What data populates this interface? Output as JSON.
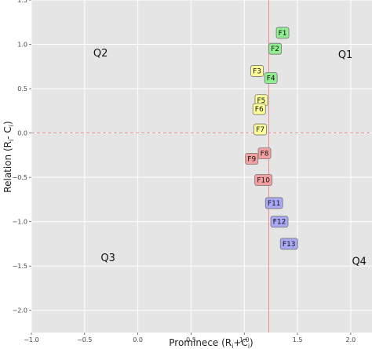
{
  "chart_data": {
    "type": "scatter",
    "title": "",
    "xlabel": "Prominece (R",
    "xlabel_sub": "i",
    "xlabel_mid": "+C",
    "xlabel_sub2": "i",
    "xlabel_end": ")",
    "ylabel": "Relation (R",
    "ylabel_sub": "i",
    "ylabel_mid": "- C",
    "ylabel_sub2": "i",
    "ylabel_end": ")",
    "xlim": [
      -1.0,
      2.2
    ],
    "ylim": [
      -2.25,
      1.5
    ],
    "x_ticks": [
      {
        "v": -1.0,
        "label": "−1.0"
      },
      {
        "v": -0.5,
        "label": "−0.5"
      },
      {
        "v": 0.0,
        "label": "0.0"
      },
      {
        "v": 0.5,
        "label": "0.5"
      },
      {
        "v": 1.0,
        "label": "1.0"
      },
      {
        "v": 1.5,
        "label": "1.5"
      },
      {
        "v": 2.0,
        "label": "2.0"
      }
    ],
    "y_ticks": [
      {
        "v": 1.5,
        "label": "1.5"
      },
      {
        "v": 1.0,
        "label": "1.0"
      },
      {
        "v": 0.5,
        "label": "0.5"
      },
      {
        "v": 0.0,
        "label": "0.0"
      },
      {
        "v": -0.5,
        "label": "−0.5"
      },
      {
        "v": -1.0,
        "label": "−1.0"
      },
      {
        "v": -1.5,
        "label": "−1.5"
      },
      {
        "v": -2.0,
        "label": "−2.0"
      }
    ],
    "grid": true,
    "reference_lines": {
      "x": 1.23,
      "y": 0.0,
      "color": "#f08080"
    },
    "quadrants": [
      {
        "label": "Q1",
        "x": 1.95,
        "y": 0.88
      },
      {
        "label": "Q2",
        "x": -0.35,
        "y": 0.9
      },
      {
        "label": "Q3",
        "x": -0.28,
        "y": -1.41
      },
      {
        "label": "Q4",
        "x": 2.08,
        "y": -1.45
      }
    ],
    "points": [
      {
        "label": "F1",
        "x": 1.36,
        "y": 1.13,
        "color": "#90ee90"
      },
      {
        "label": "F2",
        "x": 1.29,
        "y": 0.95,
        "color": "#90ee90"
      },
      {
        "label": "F3",
        "x": 1.12,
        "y": 0.7,
        "color": "#ffff99"
      },
      {
        "label": "F4",
        "x": 1.25,
        "y": 0.62,
        "color": "#90ee90"
      },
      {
        "label": "F5",
        "x": 1.16,
        "y": 0.37,
        "color": "#ffff99"
      },
      {
        "label": "F6",
        "x": 1.14,
        "y": 0.27,
        "color": "#ffff99"
      },
      {
        "label": "F7",
        "x": 1.15,
        "y": 0.04,
        "color": "#ffff99"
      },
      {
        "label": "F8",
        "x": 1.19,
        "y": -0.23,
        "color": "#f4a0a0"
      },
      {
        "label": "F9",
        "x": 1.07,
        "y": -0.29,
        "color": "#f4a0a0"
      },
      {
        "label": "F10",
        "x": 1.18,
        "y": -0.53,
        "color": "#f4a0a0"
      },
      {
        "label": "F11",
        "x": 1.28,
        "y": -0.79,
        "color": "#a8a8f4"
      },
      {
        "label": "F12",
        "x": 1.33,
        "y": -1.0,
        "color": "#a8a8f4"
      },
      {
        "label": "F13",
        "x": 1.42,
        "y": -1.25,
        "color": "#a8a8f4"
      }
    ],
    "colors": {
      "plot_bg": "#e5e5e5",
      "grid": "#ffffff",
      "reference": "#f08080"
    }
  }
}
